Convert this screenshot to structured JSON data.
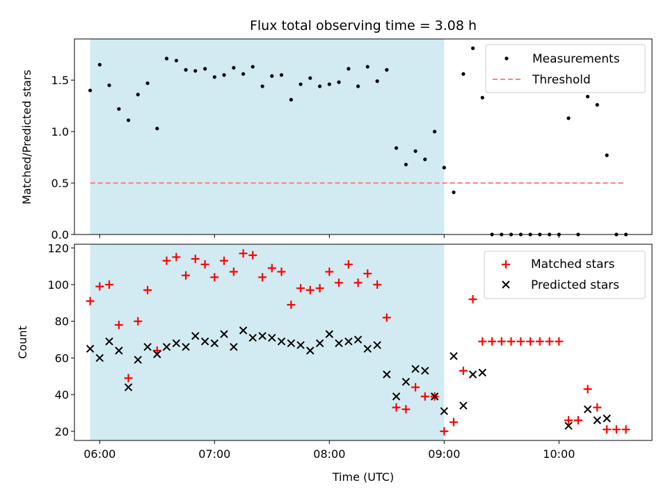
{
  "chart_data": {
    "type": "scatter",
    "title": "Flux total observing time = 3.08 h",
    "xlabel": "Time (UTC)",
    "x_ticks": [
      {
        "value": 6.0,
        "label": "06:00"
      },
      {
        "value": 7.0,
        "label": "07:00"
      },
      {
        "value": 8.0,
        "label": "08:00"
      },
      {
        "value": 9.0,
        "label": "09:00"
      },
      {
        "value": 10.0,
        "label": "10:00"
      }
    ],
    "xlim": [
      5.78,
      10.81
    ],
    "observing_window": [
      5.917,
      9.0
    ],
    "shade_color": "#add8e6",
    "panels": [
      {
        "ylabel": "Matched/Predicted stars",
        "ylim": [
          0.0,
          1.9
        ],
        "y_ticks": [
          {
            "value": 0.0,
            "label": "0.0"
          },
          {
            "value": 0.5,
            "label": "0.5"
          },
          {
            "value": 1.0,
            "label": "1.0"
          },
          {
            "value": 1.5,
            "label": "1.5"
          }
        ],
        "threshold": {
          "label": "Threshold",
          "value": 0.5,
          "x_range": [
            5.917,
            10.58
          ],
          "color": "#ff7f7f"
        },
        "series": [
          {
            "name": "Measurements",
            "marker": "dot",
            "color": "#000000",
            "x": [
              5.917,
              6.0,
              6.083,
              6.167,
              6.25,
              6.333,
              6.417,
              6.5,
              6.583,
              6.667,
              6.75,
              6.833,
              6.917,
              7.0,
              7.083,
              7.167,
              7.25,
              7.333,
              7.417,
              7.5,
              7.583,
              7.667,
              7.75,
              7.833,
              7.917,
              8.0,
              8.083,
              8.167,
              8.25,
              8.333,
              8.417,
              8.5,
              8.583,
              8.667,
              8.75,
              8.833,
              8.917,
              9.0,
              9.083,
              9.167,
              9.25,
              9.333,
              9.417,
              9.5,
              9.583,
              9.667,
              9.75,
              9.833,
              9.917,
              10.0,
              10.083,
              10.167,
              10.25,
              10.333,
              10.417,
              10.5,
              10.583
            ],
            "y": [
              1.4,
              1.65,
              1.45,
              1.22,
              1.11,
              1.36,
              1.47,
              1.03,
              1.71,
              1.69,
              1.6,
              1.59,
              1.61,
              1.53,
              1.55,
              1.62,
              1.56,
              1.63,
              1.44,
              1.54,
              1.55,
              1.31,
              1.46,
              1.52,
              1.44,
              1.46,
              1.48,
              1.61,
              1.44,
              1.63,
              1.49,
              1.6,
              0.84,
              0.68,
              0.81,
              0.73,
              1.0,
              0.65,
              0.41,
              1.56,
              1.81,
              1.33,
              0.0,
              0.0,
              0.0,
              0.0,
              0.0,
              0.0,
              0.0,
              0.0,
              1.13,
              0.0,
              1.34,
              1.26,
              0.77,
              0.0,
              0.0
            ]
          }
        ],
        "legend": {
          "position": "top-right",
          "entries": [
            "Measurements",
            "Threshold"
          ]
        }
      },
      {
        "ylabel": "Count",
        "ylim": [
          15,
          122
        ],
        "y_ticks": [
          {
            "value": 20,
            "label": "20"
          },
          {
            "value": 40,
            "label": "40"
          },
          {
            "value": 60,
            "label": "60"
          },
          {
            "value": 80,
            "label": "80"
          },
          {
            "value": 100,
            "label": "100"
          },
          {
            "value": 120,
            "label": "120"
          }
        ],
        "series": [
          {
            "name": "Matched stars",
            "marker": "plus",
            "color": "#ff0000",
            "x": [
              5.917,
              6.0,
              6.083,
              6.167,
              6.25,
              6.333,
              6.417,
              6.5,
              6.583,
              6.667,
              6.75,
              6.833,
              6.917,
              7.0,
              7.083,
              7.167,
              7.25,
              7.333,
              7.417,
              7.5,
              7.583,
              7.667,
              7.75,
              7.833,
              7.917,
              8.0,
              8.083,
              8.167,
              8.25,
              8.333,
              8.417,
              8.5,
              8.583,
              8.667,
              8.75,
              8.833,
              8.917,
              9.0,
              9.083,
              9.167,
              9.25,
              9.333,
              9.417,
              9.5,
              9.583,
              9.667,
              9.75,
              9.833,
              9.917,
              10.0,
              10.083,
              10.167,
              10.25,
              10.333,
              10.417,
              10.5,
              10.583
            ],
            "y": [
              91,
              99,
              100,
              78,
              49,
              80,
              97,
              64,
              113,
              115,
              105,
              114,
              111,
              104,
              113,
              107,
              117,
              116,
              104,
              109,
              107,
              89,
              98,
              97,
              98,
              107,
              101,
              111,
              101,
              106,
              100,
              82,
              33,
              32,
              44,
              39,
              39,
              20,
              25,
              53,
              92,
              69,
              69,
              69,
              69,
              69,
              69,
              69,
              69,
              69,
              26,
              26,
              43,
              33,
              21,
              21,
              21
            ]
          },
          {
            "name": "Predicted stars",
            "marker": "x",
            "color": "#000000",
            "x": [
              5.917,
              6.0,
              6.083,
              6.167,
              6.25,
              6.333,
              6.417,
              6.5,
              6.583,
              6.667,
              6.75,
              6.833,
              6.917,
              7.0,
              7.083,
              7.167,
              7.25,
              7.333,
              7.417,
              7.5,
              7.583,
              7.667,
              7.75,
              7.833,
              7.917,
              8.0,
              8.083,
              8.167,
              8.25,
              8.333,
              8.417,
              8.5,
              8.583,
              8.667,
              8.75,
              8.833,
              8.917,
              9.0,
              9.083,
              9.167,
              9.25,
              9.333,
              10.083,
              10.25,
              10.333,
              10.417
            ],
            "y": [
              65,
              60,
              69,
              64,
              44,
              59,
              66,
              62,
              66,
              68,
              66,
              72,
              69,
              68,
              73,
              66,
              75,
              71,
              72,
              71,
              69,
              68,
              67,
              64,
              68,
              73,
              68,
              69,
              70,
              65,
              67,
              51,
              39,
              47,
              54,
              53,
              39,
              31,
              61,
              34,
              51,
              52,
              23,
              32,
              26,
              27
            ]
          }
        ],
        "legend": {
          "position": "top-right",
          "entries": [
            "Matched stars",
            "Predicted stars"
          ]
        }
      }
    ]
  }
}
